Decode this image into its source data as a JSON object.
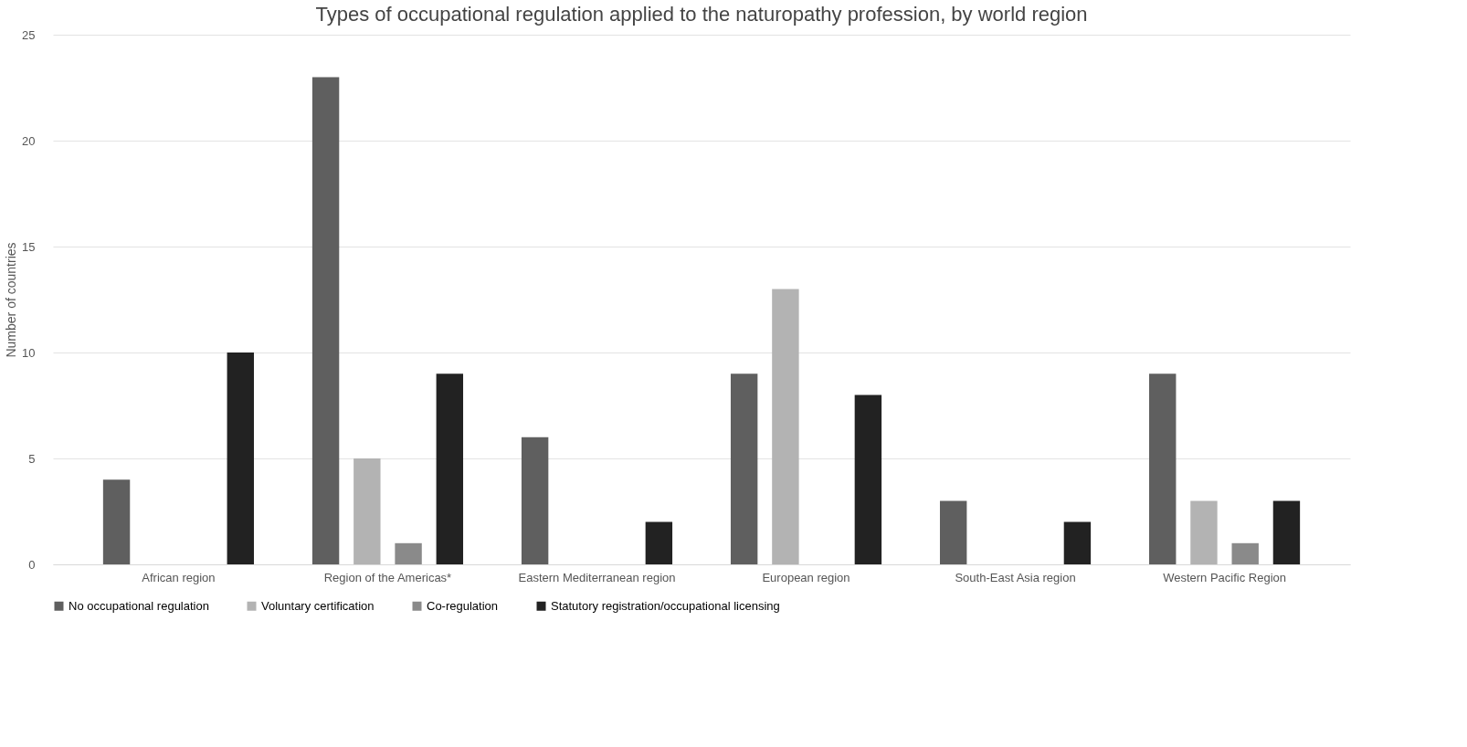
{
  "chart_data": {
    "type": "bar",
    "title": "Types of occupational regulation applied to the naturopathy profession, by world region",
    "ylabel": "Number of countries",
    "categories": [
      "African region",
      "Region of the Americas*",
      "Eastern Mediterranean region",
      "European region",
      "South-East Asia region",
      "Western Pacific Region"
    ],
    "series": [
      {
        "name": "No occupational regulation",
        "color": "#5f5f5f",
        "values": [
          4,
          23,
          6,
          9,
          3,
          9
        ]
      },
      {
        "name": "Voluntary certification",
        "color": "#b3b3b3",
        "values": [
          0,
          5,
          0,
          13,
          0,
          3
        ]
      },
      {
        "name": "Co-regulation",
        "color": "#8a8a8a",
        "values": [
          0,
          1,
          0,
          0,
          0,
          1
        ]
      },
      {
        "name": "Statutory registration/occupational licensing",
        "color": "#222222",
        "values": [
          10,
          9,
          2,
          8,
          2,
          3
        ]
      }
    ],
    "ylim": [
      0,
      25
    ],
    "yticks": [
      0,
      5,
      10,
      15,
      20,
      25
    ],
    "grid": "y",
    "legend": "bottom"
  }
}
